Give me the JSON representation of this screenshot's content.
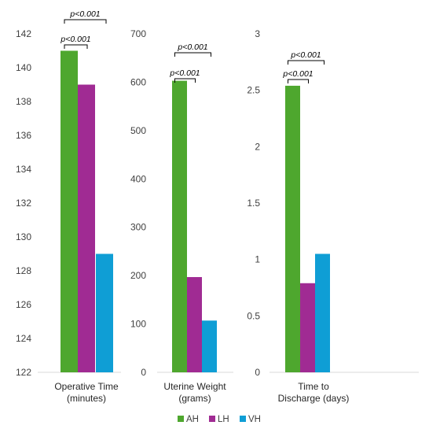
{
  "colors": {
    "AH": "#4ea72e",
    "LH": "#a02b93",
    "VH": "#0f9ed5",
    "axis": "#d9d9d9"
  },
  "legend": {
    "placement": "bottom",
    "items": [
      "AH",
      "LH",
      "VH"
    ]
  },
  "chart_data": [
    {
      "type": "bar",
      "categories": [
        "AH",
        "LH",
        "VH"
      ],
      "values": [
        141,
        139,
        129
      ],
      "xlabel": [
        "Operative Time",
        "(minutes)"
      ],
      "ylim": [
        122,
        142
      ],
      "yticks": [
        122,
        124,
        126,
        128,
        130,
        132,
        134,
        136,
        138,
        140,
        142
      ],
      "annotations": [
        {
          "text": "p<0.001",
          "from": "AH",
          "to": "LH"
        },
        {
          "text": "p<0.001",
          "from": "AH",
          "to": "VH"
        }
      ]
    },
    {
      "type": "bar",
      "categories": [
        "AH",
        "LH",
        "VH"
      ],
      "values": [
        603,
        197,
        107
      ],
      "xlabel": [
        "Uterine Weight",
        "(grams)"
      ],
      "ylim": [
        0,
        700
      ],
      "yticks": [
        0,
        100,
        200,
        300,
        400,
        500,
        600,
        700
      ],
      "annotations": [
        {
          "text": "p<0.001",
          "from": "AH",
          "to": "LH"
        },
        {
          "text": "p<0.001",
          "from": "AH",
          "to": "VH"
        }
      ]
    },
    {
      "type": "bar",
      "categories": [
        "AH",
        "LH",
        "VH"
      ],
      "values": [
        2.54,
        0.79,
        1.05
      ],
      "xlabel": [
        "Time to",
        "Discharge (days)"
      ],
      "ylim": [
        0,
        3
      ],
      "yticks": [
        "0",
        "0.5",
        "1",
        "1.5",
        "2",
        "2.5",
        "3"
      ],
      "annotations": [
        {
          "text": "p<0.001",
          "from": "AH",
          "to": "LH"
        },
        {
          "text": "p<0.001",
          "from": "AH",
          "to": "VH"
        }
      ]
    }
  ]
}
